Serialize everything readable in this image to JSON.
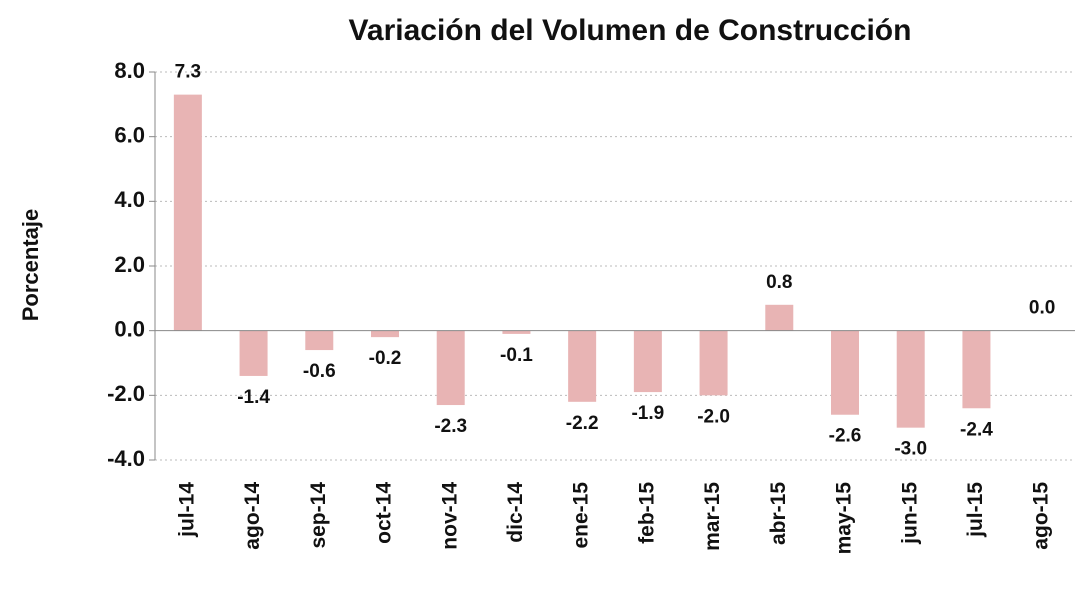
{
  "chart_data": {
    "type": "bar",
    "title": "Variación del Volumen de Construcción",
    "y_label": "Porcentaje",
    "categories": [
      "jul-14",
      "ago-14",
      "sep-14",
      "oct-14",
      "nov-14",
      "dic-14",
      "ene-15",
      "feb-15",
      "mar-15",
      "abr-15",
      "may-15",
      "jun-15",
      "jul-15",
      "ago-15"
    ],
    "values": [
      7.3,
      -1.4,
      -0.6,
      -0.2,
      -2.3,
      -0.1,
      -2.2,
      -1.9,
      -2.0,
      0.8,
      -2.6,
      -3.0,
      -2.4,
      0.0
    ],
    "value_labels": [
      "7.3",
      "-1.4",
      "-0.6",
      "-0.2",
      "-2.3",
      "-0.1",
      "-2.2",
      "-1.9",
      "-2.0",
      "0.8",
      "-2.6",
      "-3.0",
      "-2.4",
      "0.0"
    ],
    "color": "#e8b4b4",
    "ylim": [
      -4,
      8
    ],
    "yticks": [
      {
        "value": -4,
        "label": "-4.0"
      },
      {
        "value": -2,
        "label": "-2.0"
      },
      {
        "value": 0,
        "label": "0.0"
      },
      {
        "value": 2,
        "label": "2.0"
      },
      {
        "value": 4,
        "label": "4.0"
      },
      {
        "value": 6,
        "label": "6.0"
      },
      {
        "value": 8,
        "label": "8.0"
      }
    ],
    "grid": true
  }
}
